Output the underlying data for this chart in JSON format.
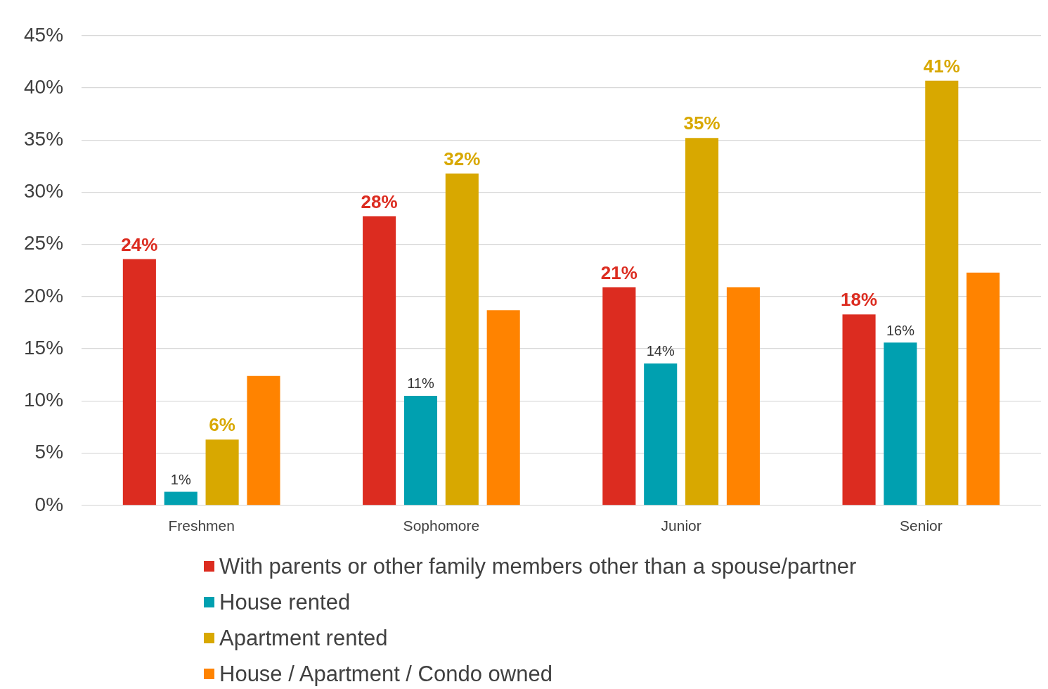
{
  "chart_data": {
    "type": "bar",
    "categories": [
      "Freshmen",
      "Sophomore",
      "Junior",
      "Senior"
    ],
    "series": [
      {
        "name": "With parents or other family members other than a spouse/partner",
        "color": "#dc2c20",
        "values": [
          23.6,
          27.7,
          20.9,
          18.3
        ],
        "value_labels": [
          "24%",
          "28%",
          "21%",
          "18%"
        ]
      },
      {
        "name": "House rented",
        "color": "#00a0b0",
        "values": [
          1.3,
          10.5,
          13.6,
          15.6
        ],
        "value_labels": [
          "1%",
          "11%",
          "14%",
          "16%"
        ]
      },
      {
        "name": "Apartment rented",
        "color": "#d8a800",
        "values": [
          6.3,
          31.8,
          35.2,
          40.7
        ],
        "value_labels": [
          "6%",
          "32%",
          "35%",
          "41%"
        ]
      },
      {
        "name": "House / Apartment / Condo owned",
        "color": "#ff8300",
        "values": [
          12.4,
          18.7,
          20.9,
          22.3
        ]
      }
    ],
    "ylim": [
      0,
      45
    ],
    "yticks": [
      {
        "value": 0,
        "label": "0%"
      },
      {
        "value": 5,
        "label": "5%"
      },
      {
        "value": 10,
        "label": "10%"
      },
      {
        "value": 15,
        "label": "15%"
      },
      {
        "value": 20,
        "label": "20%"
      },
      {
        "value": 25,
        "label": "25%"
      },
      {
        "value": 30,
        "label": "30%"
      },
      {
        "value": 35,
        "label": "35%"
      },
      {
        "value": 40,
        "label": "40%"
      },
      {
        "value": 45,
        "label": "45%"
      }
    ],
    "grid": "y",
    "legend": "bottom"
  }
}
